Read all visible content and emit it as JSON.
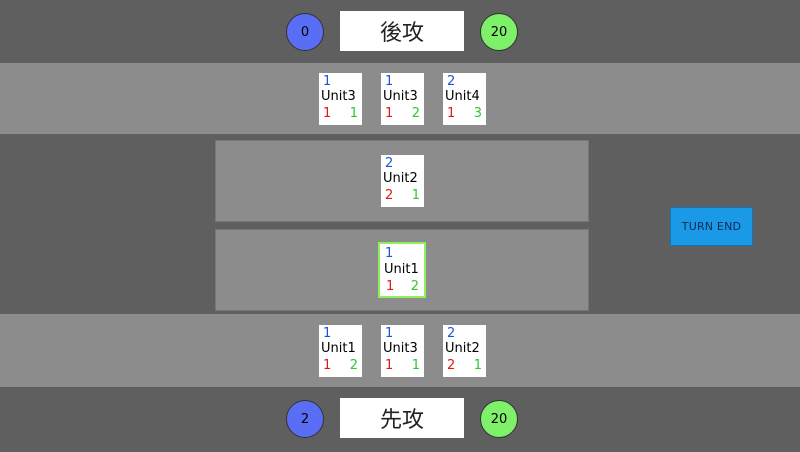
{
  "enemy": {
    "mana": "0",
    "turn_label": "後攻",
    "life": "20",
    "hand": [
      {
        "cost": "1",
        "name": "Unit3",
        "attack": "1",
        "hp": "1"
      },
      {
        "cost": "1",
        "name": "Unit3",
        "attack": "1",
        "hp": "2"
      },
      {
        "cost": "2",
        "name": "Unit4",
        "attack": "1",
        "hp": "3"
      }
    ],
    "field": [
      {
        "cost": "2",
        "name": "Unit2",
        "attack": "2",
        "hp": "1"
      }
    ]
  },
  "player": {
    "mana": "2",
    "turn_label": "先攻",
    "life": "20",
    "hand": [
      {
        "cost": "1",
        "name": "Unit1",
        "attack": "1",
        "hp": "2"
      },
      {
        "cost": "1",
        "name": "Unit3",
        "attack": "1",
        "hp": "1"
      },
      {
        "cost": "2",
        "name": "Unit2",
        "attack": "2",
        "hp": "1"
      }
    ],
    "field": [
      {
        "cost": "1",
        "name": "Unit1",
        "attack": "1",
        "hp": "2",
        "selected": true
      }
    ]
  },
  "controls": {
    "turn_end_label": "TURN END"
  },
  "colors": {
    "background": "#5f5f5f",
    "panel": "#8c8c8c",
    "mana_circle": "#5a6ef5",
    "life_circle": "#7ef06a",
    "cost_text": "#1a55d8",
    "attack_text": "#e01818",
    "hp_text": "#2fc72f",
    "selected_border": "#8ef05a",
    "turn_end_button": "#1a99e6"
  }
}
